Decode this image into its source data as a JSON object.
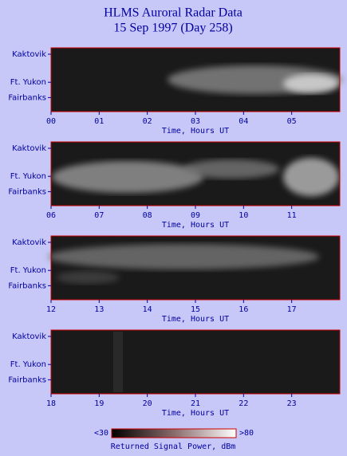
{
  "title": "HLMS Auroral Radar Data",
  "subtitle": "15 Sep 1997 (Day 258)",
  "chart_data": [
    {
      "type": "heatmap",
      "categories": [
        "Kaktovik",
        "Ft. Yukon",
        "Fairbanks"
      ],
      "xlim": [
        0,
        6
      ],
      "xticks": [
        {
          "value": 0,
          "label": "00"
        },
        {
          "value": 1,
          "label": "01"
        },
        {
          "value": 2,
          "label": "02"
        },
        {
          "value": 3,
          "label": "03"
        },
        {
          "value": 4,
          "label": "04"
        },
        {
          "value": 5,
          "label": "05"
        }
      ],
      "xlabel": "Time, Hours UT"
    },
    {
      "type": "heatmap",
      "categories": [
        "Kaktovik",
        "Ft. Yukon",
        "Fairbanks"
      ],
      "xlim": [
        6,
        12
      ],
      "xticks": [
        {
          "value": 6,
          "label": "06"
        },
        {
          "value": 7,
          "label": "07"
        },
        {
          "value": 8,
          "label": "08"
        },
        {
          "value": 9,
          "label": "09"
        },
        10,
        11
      ],
      "xlabel": "Time, Hours UT"
    },
    {
      "type": "heatmap",
      "categories": [
        "Kaktovik",
        "Ft. Yukon",
        "Fairbanks"
      ],
      "xlim": [
        12,
        18
      ],
      "xticks": [
        12,
        13,
        14,
        15,
        16,
        17
      ],
      "xlabel": "Time, Hours UT"
    },
    {
      "type": "heatmap",
      "categories": [
        "Kaktovik",
        "Ft. Yukon",
        "Fairbanks"
      ],
      "xlim": [
        18,
        24
      ],
      "xticks": [
        18,
        19,
        20,
        21,
        22,
        23
      ],
      "xlabel": "Time, Hours UT"
    }
  ],
  "colorbar": {
    "min": {
      "value": 30,
      "label": "<30"
    },
    "max": {
      "value": 80,
      "label": ">80"
    },
    "label": "Returned Signal Power, dBm"
  }
}
